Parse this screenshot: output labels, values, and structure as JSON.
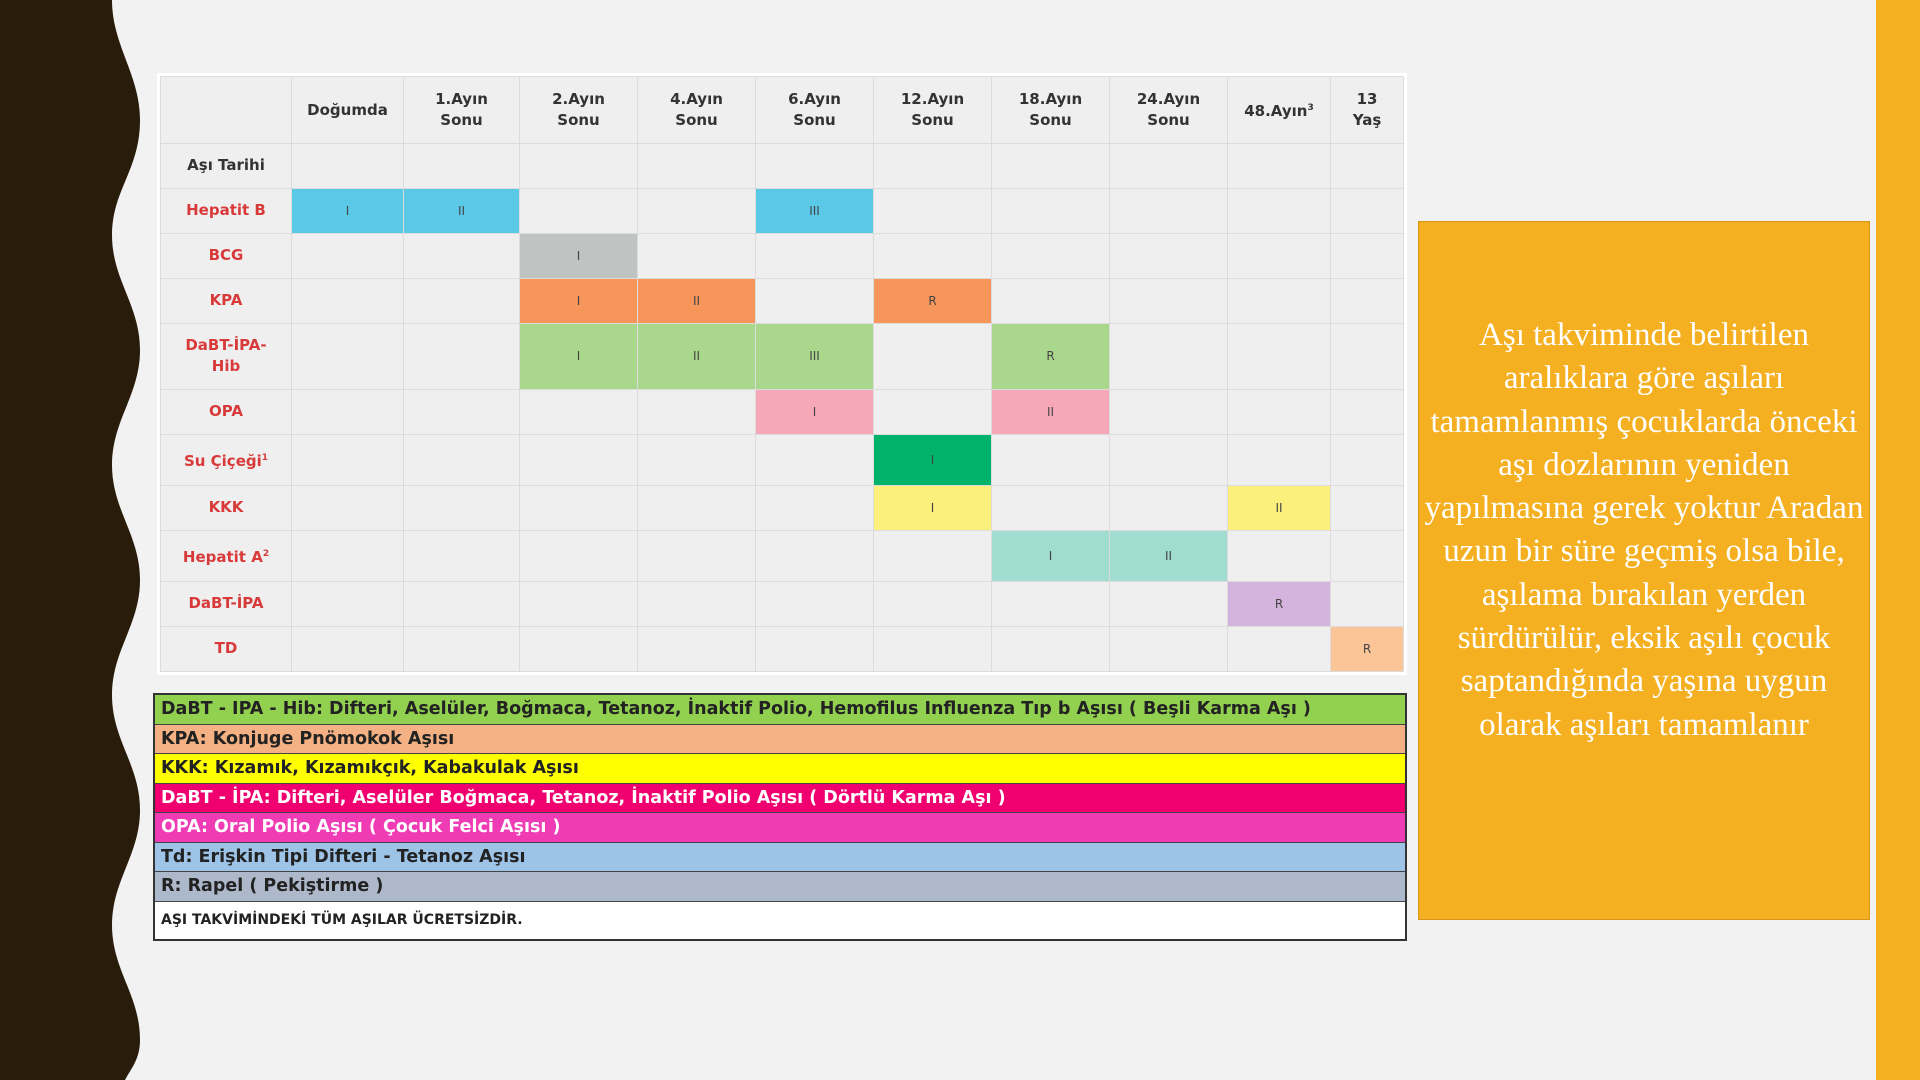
{
  "table": {
    "columns": [
      "",
      "Doğumda",
      "1.Ayın\nSonu",
      "2.Ayın\nSonu",
      "4.Ayın\nSonu",
      "6.Ayın\nSonu",
      "12.Ayın\nSonu",
      "18.Ayın\nSonu",
      "24.Ayın\nSonu",
      "48.Ayın",
      "13\nYaş"
    ],
    "column_48_sup": "3",
    "rows": [
      {
        "label": "Aşı Tarihi",
        "label_sup": "",
        "cells": [
          "",
          "",
          "",
          "",
          "",
          "",
          "",
          "",
          "",
          ""
        ]
      },
      {
        "label": "Hepatit B",
        "label_sup": "",
        "cells": [
          "I",
          "II",
          "",
          "",
          "III",
          "",
          "",
          "",
          "",
          ""
        ]
      },
      {
        "label": "BCG",
        "label_sup": "",
        "cells": [
          "",
          "",
          "I",
          "",
          "",
          "",
          "",
          "",
          "",
          ""
        ]
      },
      {
        "label": "KPA",
        "label_sup": "",
        "cells": [
          "",
          "",
          "I",
          "II",
          "",
          "R",
          "",
          "",
          "",
          ""
        ]
      },
      {
        "label": "DaBT-İPA-\nHib",
        "label_sup": "",
        "cells": [
          "",
          "",
          "I",
          "II",
          "III",
          "",
          "R",
          "",
          "",
          ""
        ]
      },
      {
        "label": "OPA",
        "label_sup": "",
        "cells": [
          "",
          "",
          "",
          "",
          "I",
          "",
          "II",
          "",
          "",
          ""
        ]
      },
      {
        "label": "Su Çiçeği",
        "label_sup": "1",
        "cells": [
          "",
          "",
          "",
          "",
          "",
          "I",
          "",
          "",
          "",
          ""
        ]
      },
      {
        "label": "KKK",
        "label_sup": "",
        "cells": [
          "",
          "",
          "",
          "",
          "",
          "I",
          "",
          "",
          "II",
          ""
        ]
      },
      {
        "label": "Hepatit A",
        "label_sup": "2",
        "cells": [
          "",
          "",
          "",
          "",
          "",
          "",
          "I",
          "II",
          "",
          ""
        ]
      },
      {
        "label": "DaBT-İPA",
        "label_sup": "",
        "cells": [
          "",
          "",
          "",
          "",
          "",
          "",
          "",
          "",
          "R",
          ""
        ]
      },
      {
        "label": "TD",
        "label_sup": "",
        "cells": [
          "",
          "",
          "",
          "",
          "",
          "",
          "",
          "",
          "",
          "R"
        ]
      }
    ],
    "row_colors": {
      "Hepatit B": "#5bc8e8",
      "BCG": "#bfc4c2",
      "KPA": "#f7965a",
      "DaBT-İPA-Hib": "#a9d88d",
      "OPA": "#f7a8b8",
      "Su Çiçeği": "#00b26a",
      "KKK": "#fbf07c",
      "Hepatit A": "#a0dccf",
      "DaBT-İPA": "#d4b4dc",
      "TD": "#fcc597"
    }
  },
  "legend": [
    {
      "text": "DaBT - IPA - Hib: Difteri, Aselüler, Boğmaca, Tetanoz, İnaktif Polio, Hemofilus Influenza Tıp b Aşısı ( Beşli Karma Aşı )",
      "color": "#92d050",
      "white": false
    },
    {
      "text": "KPA: Konjuge Pnömokok Aşısı",
      "color": "#f4b183",
      "white": false
    },
    {
      "text": "KKK: Kızamık, Kızamıkçık, Kabakulak Aşısı",
      "color": "#ffff00",
      "white": false
    },
    {
      "text": "DaBT - İPA: Difteri, Aselüler Boğmaca, Tetanoz, İnaktif Polio Aşısı ( Dörtlü Karma Aşı )",
      "color": "#f0006e",
      "white": true
    },
    {
      "text": "OPA: Oral Polio Aşısı ( Çocuk Felci Aşısı )",
      "color": "#f03cb4",
      "white": true
    },
    {
      "text": "Td: Erişkin Tipi Difteri - Tetanoz Aşısı",
      "color": "#9dc3e6",
      "white": false
    },
    {
      "text": "R: Rapel ( Pekiştirme )",
      "color": "#adb9ca",
      "white": false
    }
  ],
  "legend_note": "AŞI TAKVİMİNDEKİ TÜM AŞILAR ÜCRETSİZDİR.",
  "info_text": "Aşı takviminde belirtilen aralıklara göre aşıları tamamlanmış çocuklarda önceki aşı dozlarının yeniden yapılmasına gerek yoktur Aradan uzun bir süre geçmiş olsa bile, aşılama bırakılan yerden sürdürülür, eksik aşılı çocuk saptandığında  yaşına uygun olarak aşıları tamamlanır"
}
